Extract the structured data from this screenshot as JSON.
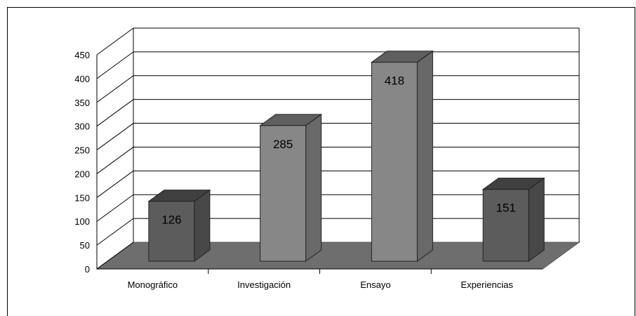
{
  "chart_data": {
    "type": "bar",
    "title": "",
    "xlabel": "",
    "ylabel": "",
    "categories": [
      "Monográfico",
      "Investigación",
      "Ensayo",
      "Experiencias"
    ],
    "values": [
      126,
      285,
      418,
      151
    ],
    "data_labels": [
      "126",
      "285",
      "418",
      "151"
    ],
    "ylim": [
      0,
      450
    ],
    "yticks": [
      "0",
      "50",
      "100",
      "150",
      "200",
      "250",
      "300",
      "350",
      "400",
      "450"
    ],
    "grid": true,
    "style": "3d-column",
    "colors": {
      "dark_bar": "#5c5c5c",
      "light_bar": "#878787",
      "floor": "#6e6e6e"
    }
  }
}
